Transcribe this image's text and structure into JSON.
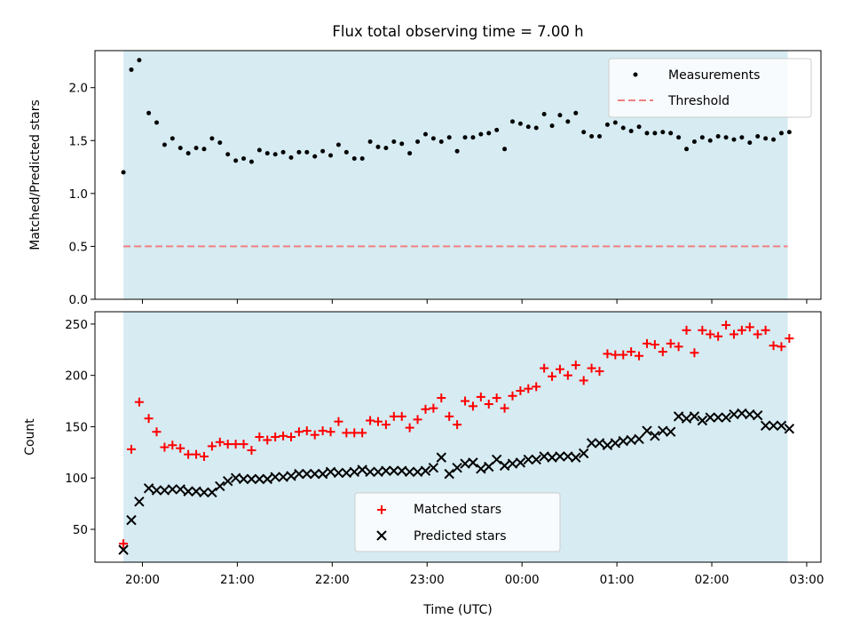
{
  "chart_data": [
    {
      "type": "scatter",
      "title": "Flux total observing time = 7.00 h",
      "xlabel": "",
      "ylabel": "Matched/Predicted stars",
      "ylim": [
        0,
        2.35
      ],
      "y_ticks": [
        "0.0",
        "0.5",
        "1.0",
        "1.5",
        "2.0"
      ],
      "x_range_hours": [
        19.5,
        27.15
      ],
      "observing_window": {
        "start": "19:48",
        "end": "02:48",
        "color": "#add8e6"
      },
      "grid": false,
      "legend": {
        "position": "top-right",
        "entries": [
          {
            "label": "Measurements",
            "marker": "dot",
            "color": "#000000"
          },
          {
            "label": "Threshold",
            "marker": "dashed-line",
            "color": "#f08080"
          }
        ]
      },
      "threshold": {
        "y": 0.5,
        "x_start": "19:48",
        "x_end": "02:48",
        "color": "#f08080"
      },
      "series": [
        {
          "name": "Measurements",
          "color": "#000000",
          "x": [
            "19:48",
            "19:53",
            "19:58",
            "20:04",
            "20:09",
            "20:14",
            "20:19",
            "20:24",
            "20:29",
            "20:34",
            "20:39",
            "20:44",
            "20:49",
            "20:54",
            "20:59",
            "21:04",
            "21:09",
            "21:14",
            "21:19",
            "21:24",
            "21:29",
            "21:34",
            "21:39",
            "21:44",
            "21:49",
            "21:54",
            "21:59",
            "22:04",
            "22:09",
            "22:14",
            "22:19",
            "22:24",
            "22:29",
            "22:34",
            "22:39",
            "22:44",
            "22:49",
            "22:54",
            "22:59",
            "23:04",
            "23:09",
            "23:14",
            "23:19",
            "23:24",
            "23:29",
            "23:34",
            "23:39",
            "23:44",
            "23:49",
            "23:54",
            "23:59",
            "00:04",
            "00:09",
            "00:14",
            "00:19",
            "00:24",
            "00:29",
            "00:34",
            "00:39",
            "00:44",
            "00:49",
            "00:54",
            "00:59",
            "01:04",
            "01:09",
            "01:14",
            "01:19",
            "01:24",
            "01:29",
            "01:34",
            "01:39",
            "01:44",
            "01:49",
            "01:54",
            "01:59",
            "02:04",
            "02:09",
            "02:14",
            "02:19",
            "02:24",
            "02:29",
            "02:34",
            "02:39",
            "02:44",
            "02:49"
          ],
          "y": [
            1.2,
            2.17,
            2.26,
            1.76,
            1.67,
            1.46,
            1.52,
            1.43,
            1.38,
            1.43,
            1.42,
            1.52,
            1.48,
            1.37,
            1.31,
            1.33,
            1.3,
            1.41,
            1.38,
            1.37,
            1.39,
            1.34,
            1.39,
            1.39,
            1.35,
            1.4,
            1.36,
            1.46,
            1.39,
            1.33,
            1.33,
            1.49,
            1.44,
            1.43,
            1.49,
            1.47,
            1.38,
            1.49,
            1.56,
            1.52,
            1.49,
            1.53,
            1.4,
            1.53,
            1.53,
            1.56,
            1.57,
            1.6,
            1.42,
            1.68,
            1.66,
            1.63,
            1.62,
            1.75,
            1.64,
            1.74,
            1.68,
            1.76,
            1.58,
            1.54,
            1.54,
            1.65,
            1.67,
            1.62,
            1.59,
            1.63,
            1.57,
            1.57,
            1.58,
            1.57,
            1.53,
            1.42,
            1.49,
            1.53,
            1.5,
            1.54,
            1.53,
            1.51,
            1.53,
            1.48,
            1.54,
            1.52,
            1.51,
            1.57,
            1.58
          ]
        }
      ]
    },
    {
      "type": "scatter",
      "title": "",
      "xlabel": "Time (UTC)",
      "ylabel": "Count",
      "ylim": [
        18,
        262
      ],
      "y_ticks": [
        "50",
        "100",
        "150",
        "200",
        "250"
      ],
      "x_ticks": [
        "20:00",
        "21:00",
        "22:00",
        "23:00",
        "00:00",
        "01:00",
        "02:00",
        "03:00"
      ],
      "x_range_hours": [
        19.5,
        27.15
      ],
      "observing_window": {
        "start": "19:48",
        "end": "02:48",
        "color": "#add8e6"
      },
      "grid": false,
      "legend": {
        "position": "lower-center",
        "entries": [
          {
            "label": "Matched stars",
            "marker": "plus",
            "color": "#ff0000"
          },
          {
            "label": "Predicted stars",
            "marker": "x",
            "color": "#000000"
          }
        ]
      },
      "series": [
        {
          "name": "Matched stars",
          "marker": "plus",
          "color": "#ff0000",
          "x": [
            "19:48",
            "19:53",
            "19:58",
            "20:04",
            "20:09",
            "20:14",
            "20:19",
            "20:24",
            "20:29",
            "20:34",
            "20:39",
            "20:44",
            "20:49",
            "20:54",
            "20:59",
            "21:04",
            "21:09",
            "21:14",
            "21:19",
            "21:24",
            "21:29",
            "21:34",
            "21:39",
            "21:44",
            "21:49",
            "21:54",
            "21:59",
            "22:04",
            "22:09",
            "22:14",
            "22:19",
            "22:24",
            "22:29",
            "22:34",
            "22:39",
            "22:44",
            "22:49",
            "22:54",
            "22:59",
            "23:04",
            "23:09",
            "23:14",
            "23:19",
            "23:24",
            "23:29",
            "23:34",
            "23:39",
            "23:44",
            "23:49",
            "23:54",
            "23:59",
            "00:04",
            "00:09",
            "00:14",
            "00:19",
            "00:24",
            "00:29",
            "00:34",
            "00:39",
            "00:44",
            "00:49",
            "00:54",
            "00:59",
            "01:04",
            "01:09",
            "01:14",
            "01:19",
            "01:24",
            "01:29",
            "01:34",
            "01:39",
            "01:44",
            "01:49",
            "01:54",
            "01:59",
            "02:04",
            "02:09",
            "02:14",
            "02:19",
            "02:24",
            "02:29",
            "02:34",
            "02:39",
            "02:44",
            "02:49"
          ],
          "y": [
            36,
            128,
            174,
            158,
            145,
            130,
            132,
            129,
            123,
            123,
            121,
            131,
            135,
            133,
            133,
            133,
            127,
            140,
            137,
            140,
            141,
            140,
            145,
            146,
            142,
            146,
            145,
            155,
            144,
            144,
            144,
            156,
            155,
            152,
            160,
            160,
            149,
            157,
            167,
            168,
            178,
            160,
            152,
            175,
            170,
            179,
            172,
            178,
            168,
            180,
            185,
            187,
            189,
            207,
            199,
            206,
            200,
            210,
            195,
            207,
            204,
            221,
            220,
            220,
            223,
            219,
            231,
            230,
            223,
            231,
            228,
            244,
            222,
            244,
            240,
            238,
            249,
            240,
            244,
            247,
            240,
            244,
            229,
            228,
            236
          ]
        },
        {
          "name": "Predicted stars",
          "marker": "x",
          "color": "#000000",
          "x": [
            "19:48",
            "19:53",
            "19:58",
            "20:04",
            "20:09",
            "20:14",
            "20:19",
            "20:24",
            "20:29",
            "20:34",
            "20:39",
            "20:44",
            "20:49",
            "20:54",
            "20:59",
            "21:04",
            "21:09",
            "21:14",
            "21:19",
            "21:24",
            "21:29",
            "21:34",
            "21:39",
            "21:44",
            "21:49",
            "21:54",
            "21:59",
            "22:04",
            "22:09",
            "22:14",
            "22:19",
            "22:24",
            "22:29",
            "22:34",
            "22:39",
            "22:44",
            "22:49",
            "22:54",
            "22:59",
            "23:04",
            "23:09",
            "23:14",
            "23:19",
            "23:24",
            "23:29",
            "23:34",
            "23:39",
            "23:44",
            "23:49",
            "23:54",
            "23:59",
            "00:04",
            "00:09",
            "00:14",
            "00:19",
            "00:24",
            "00:29",
            "00:34",
            "00:39",
            "00:44",
            "00:49",
            "00:54",
            "00:59",
            "01:04",
            "01:09",
            "01:14",
            "01:19",
            "01:24",
            "01:29",
            "01:34",
            "01:39",
            "01:44",
            "01:49",
            "01:54",
            "01:59",
            "02:04",
            "02:09",
            "02:14",
            "02:19",
            "02:24",
            "02:29",
            "02:34",
            "02:39",
            "02:44",
            "02:49"
          ],
          "y": [
            30,
            59,
            77,
            90,
            88,
            88,
            89,
            89,
            87,
            87,
            86,
            86,
            92,
            97,
            100,
            99,
            99,
            99,
            99,
            101,
            101,
            102,
            104,
            104,
            104,
            104,
            106,
            105,
            105,
            106,
            108,
            106,
            106,
            107,
            107,
            107,
            106,
            106,
            107,
            110,
            120,
            104,
            110,
            114,
            115,
            109,
            111,
            118,
            112,
            114,
            115,
            118,
            118,
            121,
            120,
            121,
            121,
            120,
            124,
            134,
            134,
            132,
            134,
            136,
            137,
            138,
            146,
            141,
            146,
            145,
            160,
            158,
            160,
            156,
            159,
            159,
            159,
            162,
            163,
            162,
            161,
            151,
            151,
            151,
            148
          ]
        }
      ]
    }
  ]
}
